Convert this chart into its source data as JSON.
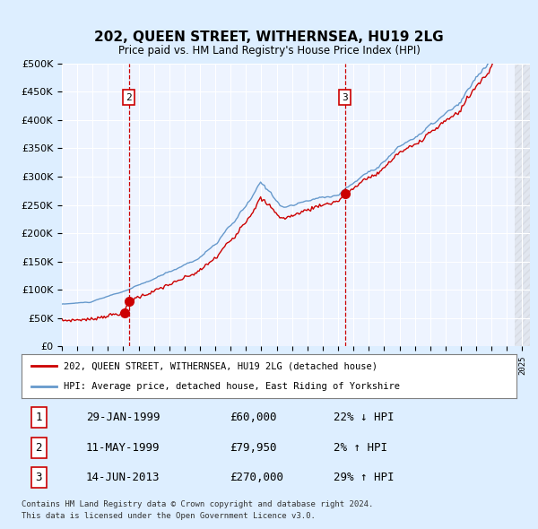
{
  "title": "202, QUEEN STREET, WITHERNSEA, HU19 2LG",
  "subtitle": "Price paid vs. HM Land Registry's House Price Index (HPI)",
  "legend_line1": "202, QUEEN STREET, WITHERNSEA, HU19 2LG (detached house)",
  "legend_line2": "HPI: Average price, detached house, East Riding of Yorkshire",
  "table": [
    {
      "num": 1,
      "date": "29-JAN-1999",
      "price": "£60,000",
      "hpi": "22% ↓ HPI"
    },
    {
      "num": 2,
      "date": "11-MAY-1999",
      "price": "£79,950",
      "hpi": "2% ↑ HPI"
    },
    {
      "num": 3,
      "date": "14-JUN-2013",
      "price": "£270,000",
      "hpi": "29% ↑ HPI"
    }
  ],
  "footnote1": "Contains HM Land Registry data © Crown copyright and database right 2024.",
  "footnote2": "This data is licensed under the Open Government Licence v3.0.",
  "red_line_color": "#cc0000",
  "blue_line_color": "#6699cc",
  "background_color": "#ddeeff",
  "plot_bg_color": "#eef4ff",
  "grid_color": "#ffffff",
  "vline_color": "#cc0000",
  "sale1_date_num": 1999.08,
  "sale1_price": 60000,
  "sale2_date_num": 1999.37,
  "sale2_price": 79950,
  "sale3_date_num": 2013.45,
  "sale3_price": 270000,
  "ylim": [
    0,
    500000
  ],
  "xlim_start": 1995,
  "xlim_end": 2025.5,
  "hatch_start": 2024.5
}
